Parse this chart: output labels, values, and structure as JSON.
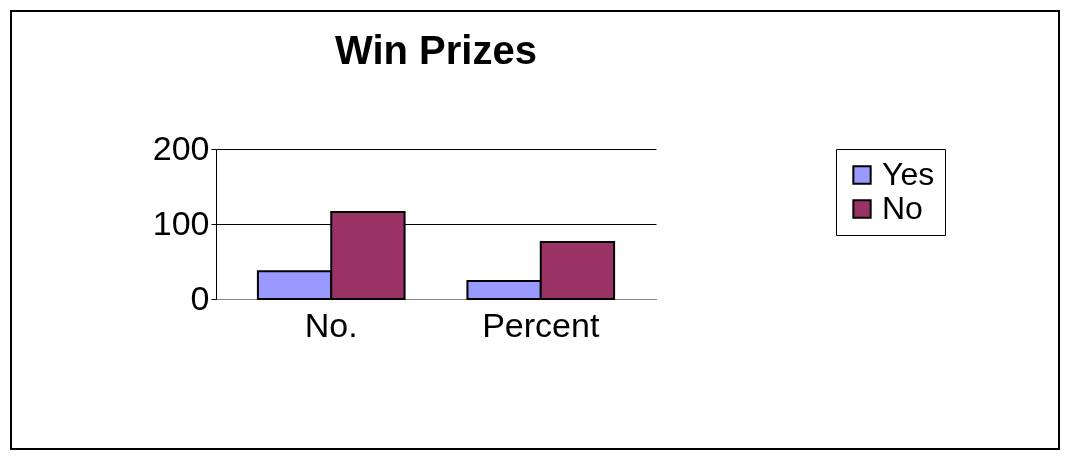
{
  "chart_data": {
    "type": "bar",
    "title": "Win Prizes",
    "categories": [
      "No.",
      "Percent"
    ],
    "series": [
      {
        "name": "Yes",
        "color": "#9999ff",
        "values": [
          37,
          24
        ]
      },
      {
        "name": "No",
        "color": "#993366",
        "values": [
          116,
          76
        ]
      }
    ],
    "ylim": [
      0,
      200
    ],
    "yticks": [
      0,
      100,
      200
    ],
    "grid": "y",
    "legend": "right"
  }
}
